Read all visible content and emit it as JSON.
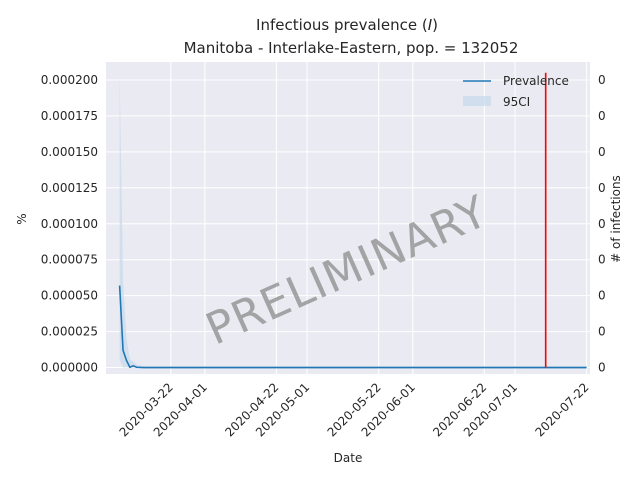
{
  "chart_data": {
    "type": "line",
    "title_main": "Infectious prevalence (",
    "title_var": "I",
    "title_close": ")",
    "subtitle": "Manitoba - Interlake-Eastern, pop. = 132052",
    "xlabel": "Date",
    "ylabel": "%",
    "ylabel_right": "# of infections",
    "yticks": [
      "0.000000",
      "0.000025",
      "0.000050",
      "0.000075",
      "0.000100",
      "0.000125",
      "0.000150",
      "0.000175",
      "0.000200"
    ],
    "ytick_values": [
      0,
      2.5e-05,
      5e-05,
      7.5e-05,
      0.0001,
      0.000125,
      0.00015,
      0.000175,
      0.0002
    ],
    "yticks_right": [
      "0",
      "0",
      "0",
      "0",
      "0",
      "0",
      "0",
      "0",
      "0"
    ],
    "xticks": [
      "2020-03-22",
      "2020-04-01",
      "2020-04-22",
      "2020-05-01",
      "2020-05-22",
      "2020-06-01",
      "2020-06-22",
      "2020-07-01",
      "2020-07-22"
    ],
    "xlim": [
      "2020-03-03",
      "2020-07-23"
    ],
    "ylim": [
      -4.5e-06,
      0.0002125
    ],
    "series": [
      {
        "name": "Prevalence",
        "color": "#1f77b4",
        "x": [
          "2020-03-07",
          "2020-03-08",
          "2020-03-09",
          "2020-03-10",
          "2020-03-11",
          "2020-03-12",
          "2020-03-14",
          "2020-03-20",
          "2020-04-01",
          "2020-05-01",
          "2020-06-01",
          "2020-07-01",
          "2020-07-22"
        ],
        "y": [
          5.7e-05,
          1.2e-05,
          5e-06,
          2e-07,
          1.2e-06,
          2e-07,
          0.0,
          0.0,
          0.0,
          0.0,
          0.0,
          0.0,
          0.0
        ]
      }
    ],
    "ci": {
      "name": "95CI",
      "color": "#c6d9ec",
      "x": [
        "2020-03-07",
        "2020-03-08",
        "2020-03-09",
        "2020-03-10",
        "2020-03-12",
        "2020-03-14",
        "2020-07-22"
      ],
      "upper": [
        0.000205,
        6e-05,
        2e-05,
        6e-06,
        2e-06,
        1e-06,
        1e-06
      ],
      "lower": [
        5e-06,
        0.0,
        0.0,
        0.0,
        0.0,
        0.0,
        0.0
      ]
    },
    "vline": {
      "x": "2020-07-10",
      "color": "#ff0000"
    },
    "watermark": "PRELIMINARY",
    "legend_position": "top-right",
    "grid": true,
    "background": "#eaeaf2"
  }
}
